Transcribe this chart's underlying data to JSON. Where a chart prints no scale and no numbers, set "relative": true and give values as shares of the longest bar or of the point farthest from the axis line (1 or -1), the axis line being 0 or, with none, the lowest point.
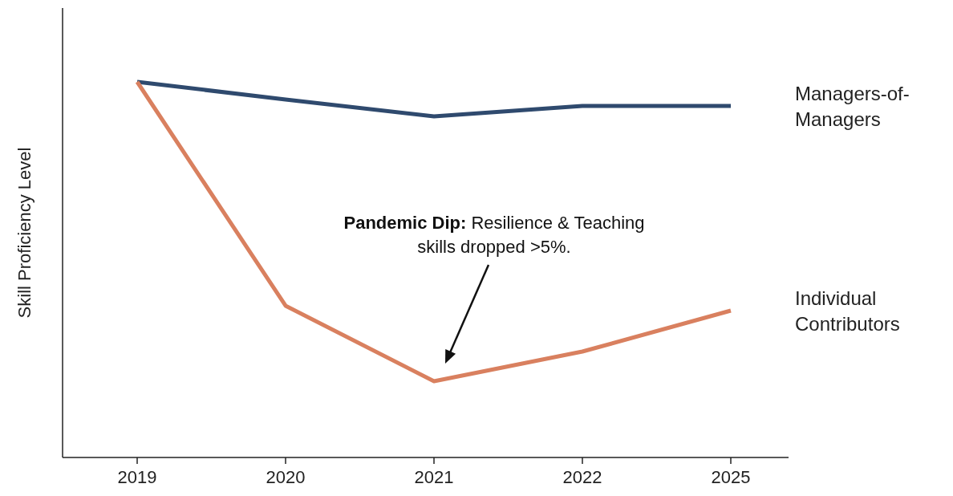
{
  "chart_data": {
    "type": "line",
    "relative": true,
    "ylabel": "Skill Proficiency Level",
    "categories": [
      "2019",
      "2020",
      "2021",
      "2022",
      "2025"
    ],
    "series": [
      {
        "name": "Managers-of-Managers",
        "color": "#2f4a6e",
        "values": [
          1,
          0.953,
          0.908,
          0.936,
          0.936
        ]
      },
      {
        "name": "Individual Contributors",
        "color": "#d9805f",
        "values": [
          1,
          0.404,
          0.203,
          0.282,
          0.391
        ]
      }
    ],
    "annotations": [
      "Pandemic Dip: Resilience & Teaching skills dropped >5%."
    ],
    "marker": "none",
    "line_style": "solid"
  }
}
